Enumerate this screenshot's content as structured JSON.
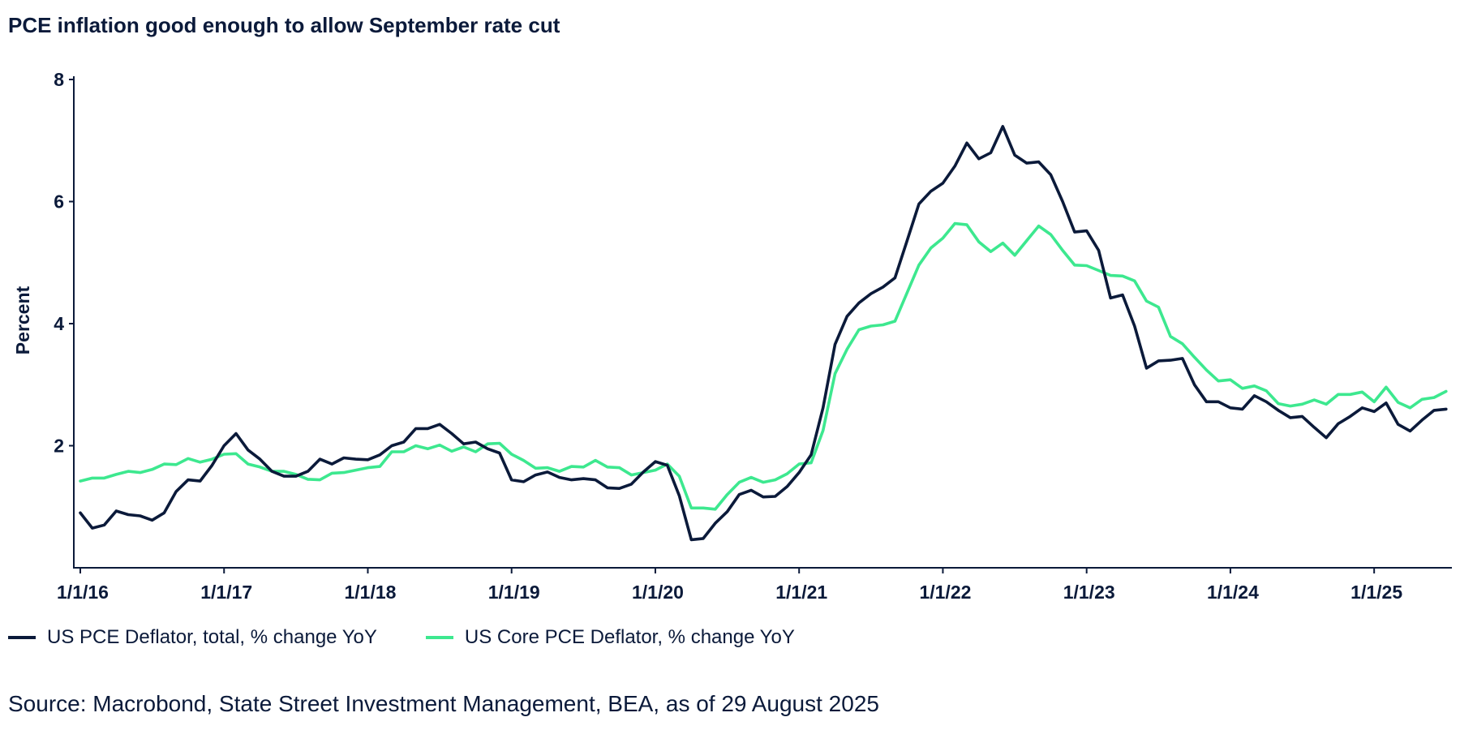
{
  "title": "PCE inflation good enough to allow September rate cut",
  "source": "Source: Macrobond, State Street Investment Management, BEA, as of 29 August 2025",
  "chart_data": {
    "type": "line",
    "title": "PCE inflation good enough to allow September rate cut",
    "ylabel": "Percent",
    "xlabel": "",
    "ylim": [
      0,
      8
    ],
    "yticks": [
      2,
      4,
      6,
      8
    ],
    "x_ticks": [
      "1/1/16",
      "1/1/17",
      "1/1/18",
      "1/1/19",
      "1/1/20",
      "1/1/21",
      "1/1/22",
      "1/1/23",
      "1/1/24",
      "1/1/25"
    ],
    "x_start": "2016-01",
    "x_end": "2025-07",
    "grid": false,
    "legend_position": "bottom",
    "colors": {
      "total": "#0b1a3a",
      "core": "#3de88f"
    },
    "series": [
      {
        "name": "US PCE Deflator, total, % change YoY",
        "color": "#0b1a3a",
        "values": [
          0.9,
          0.65,
          0.7,
          0.93,
          0.87,
          0.85,
          0.78,
          0.9,
          1.25,
          1.44,
          1.42,
          1.68,
          2.0,
          2.2,
          1.93,
          1.78,
          1.58,
          1.5,
          1.5,
          1.58,
          1.78,
          1.7,
          1.8,
          1.78,
          1.77,
          1.85,
          2.0,
          2.06,
          2.28,
          2.28,
          2.35,
          2.2,
          2.03,
          2.06,
          1.95,
          1.88,
          1.44,
          1.41,
          1.52,
          1.57,
          1.48,
          1.44,
          1.46,
          1.44,
          1.31,
          1.3,
          1.37,
          1.57,
          1.74,
          1.68,
          1.18,
          0.46,
          0.48,
          0.73,
          0.92,
          1.2,
          1.27,
          1.16,
          1.17,
          1.33,
          1.56,
          1.85,
          2.62,
          3.66,
          4.12,
          4.34,
          4.49,
          4.6,
          4.75,
          5.35,
          5.96,
          6.17,
          6.3,
          6.58,
          6.96,
          6.7,
          6.8,
          7.23,
          6.76,
          6.63,
          6.65,
          6.44,
          6.0,
          5.5,
          5.52,
          5.2,
          4.42,
          4.47,
          3.96,
          3.27,
          3.39,
          3.4,
          3.43,
          3.0,
          2.72,
          2.72,
          2.62,
          2.6,
          2.82,
          2.72,
          2.58,
          2.46,
          2.48,
          2.3,
          2.13,
          2.36,
          2.48,
          2.62,
          2.56,
          2.7,
          2.35,
          2.24,
          2.42,
          2.58,
          2.6
        ]
      },
      {
        "name": "US Core PCE Deflator, % change YoY",
        "color": "#3de88f",
        "values": [
          1.42,
          1.47,
          1.47,
          1.53,
          1.58,
          1.56,
          1.61,
          1.7,
          1.69,
          1.79,
          1.73,
          1.78,
          1.86,
          1.87,
          1.7,
          1.65,
          1.58,
          1.58,
          1.53,
          1.45,
          1.44,
          1.55,
          1.56,
          1.6,
          1.64,
          1.66,
          1.9,
          1.9,
          2.0,
          1.95,
          2.01,
          1.91,
          1.98,
          1.9,
          2.03,
          2.04,
          1.86,
          1.76,
          1.63,
          1.64,
          1.58,
          1.66,
          1.65,
          1.76,
          1.65,
          1.64,
          1.52,
          1.56,
          1.6,
          1.7,
          1.5,
          0.98,
          0.98,
          0.96,
          1.2,
          1.4,
          1.48,
          1.4,
          1.44,
          1.54,
          1.7,
          1.72,
          2.25,
          3.18,
          3.58,
          3.9,
          3.96,
          3.98,
          4.04,
          4.5,
          4.96,
          5.24,
          5.4,
          5.64,
          5.62,
          5.34,
          5.18,
          5.32,
          5.12,
          5.36,
          5.6,
          5.46,
          5.2,
          4.96,
          4.95,
          4.87,
          4.79,
          4.78,
          4.7,
          4.37,
          4.27,
          3.79,
          3.67,
          3.45,
          3.24,
          3.06,
          3.08,
          2.94,
          2.98,
          2.9,
          2.69,
          2.65,
          2.68,
          2.75,
          2.68,
          2.84,
          2.84,
          2.88,
          2.72,
          2.96,
          2.71,
          2.62,
          2.76,
          2.79,
          2.89
        ]
      }
    ]
  }
}
